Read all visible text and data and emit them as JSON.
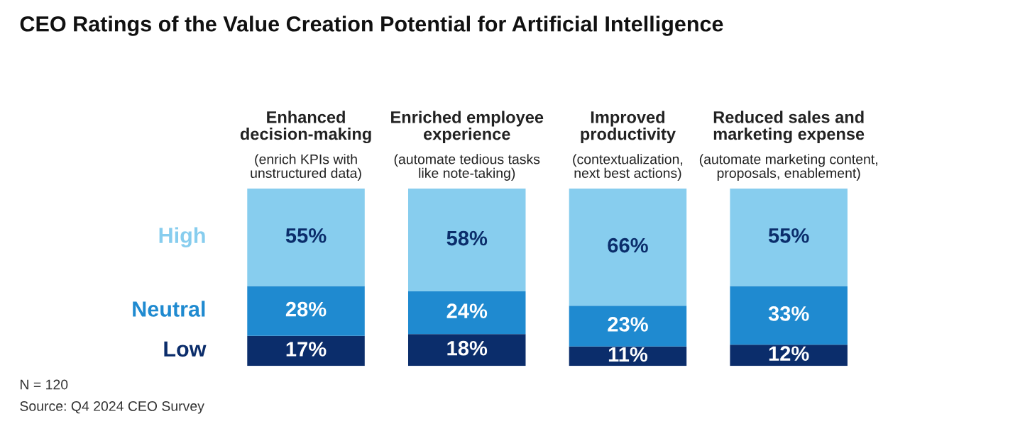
{
  "chart_data": {
    "type": "bar",
    "stacked": true,
    "title": "CEO Ratings of the Value Creation Potential for Artificial Intelligence",
    "categories": [
      "Enhanced\ndecision-making\n(enrich KPIs with\nunstructured data)",
      "Enriched employee\nexperience\n(automate tedious tasks\nlike note-taking)",
      "Improved\nproductivity\n(contextualization,\nnext best actions)",
      "Reduced sales and\nmarketing expense\n(automate marketing content,\nproposals, enablement)"
    ],
    "series": [
      {
        "name": "Low",
        "color": "#0b2d6b",
        "values": [
          17,
          18,
          11,
          12
        ],
        "value_labels": [
          "17%",
          "18%",
          "11%",
          "12%"
        ]
      },
      {
        "name": "Neutral",
        "color": "#1f8ad0",
        "values": [
          28,
          24,
          23,
          33
        ],
        "value_labels": [
          "28%",
          "24%",
          "23%",
          "33%"
        ]
      },
      {
        "name": "High",
        "color": "#87cdee",
        "values": [
          55,
          58,
          66,
          55
        ],
        "value_labels": [
          "55%",
          "58%",
          "66%",
          "55%"
        ]
      }
    ],
    "legend": false,
    "annotations": [
      "N = 120",
      "Source: Q4 2024 CEO Survey"
    ]
  }
}
